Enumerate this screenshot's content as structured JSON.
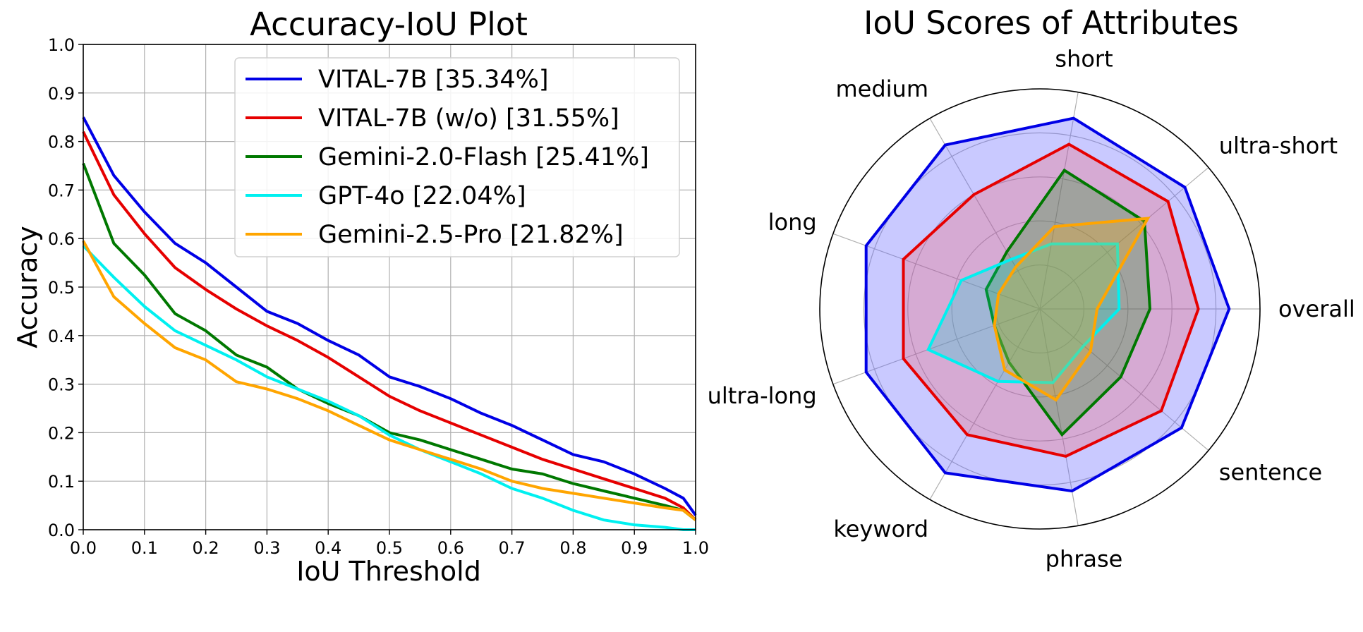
{
  "line_chart": {
    "title": "Accuracy-IoU Plot",
    "xlabel": "IoU Threshold",
    "ylabel": "Accuracy",
    "x_ticks": [
      "0.0",
      "0.1",
      "0.2",
      "0.3",
      "0.4",
      "0.5",
      "0.6",
      "0.7",
      "0.8",
      "0.9",
      "1.0"
    ],
    "y_ticks": [
      "0.0",
      "0.1",
      "0.2",
      "0.3",
      "0.4",
      "0.5",
      "0.6",
      "0.7",
      "0.8",
      "0.9",
      "1.0"
    ]
  },
  "radar_chart": {
    "title": "IoU Scores of Attributes"
  },
  "chart_data": [
    {
      "type": "line",
      "title": "Accuracy-IoU Plot",
      "xlabel": "IoU Threshold",
      "ylabel": "Accuracy",
      "xlim": [
        0,
        1
      ],
      "ylim": [
        0,
        1
      ],
      "grid": true,
      "legend_position": "top-right",
      "x": [
        0.0,
        0.05,
        0.1,
        0.15,
        0.2,
        0.25,
        0.3,
        0.35,
        0.4,
        0.45,
        0.5,
        0.55,
        0.6,
        0.65,
        0.7,
        0.75,
        0.8,
        0.85,
        0.9,
        0.95,
        0.98,
        1.0
      ],
      "series": [
        {
          "name": "VITAL-7B [35.34%]",
          "color": "#0000e6",
          "values": [
            0.85,
            0.73,
            0.655,
            0.59,
            0.55,
            0.5,
            0.45,
            0.425,
            0.39,
            0.36,
            0.315,
            0.295,
            0.27,
            0.24,
            0.215,
            0.185,
            0.155,
            0.14,
            0.115,
            0.085,
            0.065,
            0.03
          ]
        },
        {
          "name": "VITAL-7B (w/o) [31.55%]",
          "color": "#e60000",
          "values": [
            0.82,
            0.69,
            0.61,
            0.54,
            0.495,
            0.455,
            0.42,
            0.39,
            0.355,
            0.315,
            0.275,
            0.245,
            0.22,
            0.195,
            0.17,
            0.145,
            0.125,
            0.105,
            0.085,
            0.065,
            0.045,
            0.02
          ]
        },
        {
          "name": "Gemini-2.0-Flash [25.41%]",
          "color": "#007800",
          "values": [
            0.755,
            0.59,
            0.525,
            0.445,
            0.41,
            0.36,
            0.335,
            0.29,
            0.26,
            0.235,
            0.2,
            0.185,
            0.165,
            0.145,
            0.125,
            0.115,
            0.095,
            0.08,
            0.065,
            0.05,
            0.04,
            0.02
          ]
        },
        {
          "name": "GPT-4o [22.04%]",
          "color": "#00f0f0",
          "values": [
            0.585,
            0.52,
            0.46,
            0.41,
            0.38,
            0.35,
            0.315,
            0.29,
            0.265,
            0.235,
            0.195,
            0.165,
            0.14,
            0.115,
            0.085,
            0.065,
            0.04,
            0.02,
            0.01,
            0.005,
            0.0,
            0.0
          ]
        },
        {
          "name": "Gemini-2.5-Pro [21.82%]",
          "color": "#ffa500",
          "values": [
            0.595,
            0.48,
            0.425,
            0.375,
            0.35,
            0.305,
            0.29,
            0.27,
            0.245,
            0.215,
            0.185,
            0.165,
            0.145,
            0.125,
            0.1,
            0.085,
            0.075,
            0.065,
            0.055,
            0.045,
            0.04,
            0.02
          ]
        }
      ]
    },
    {
      "type": "radar",
      "title": "IoU Scores of Attributes",
      "categories": [
        "overall",
        "ultra-short",
        "short",
        "medium",
        "long",
        "ultra-long",
        "keyword",
        "phrase",
        "sentence"
      ],
      "rmax": 50,
      "series": [
        {
          "name": "VITAL-7B",
          "color": "#0000e6",
          "fill": "rgba(100,100,255,0.35)",
          "values": [
            43,
            43,
            44,
            43,
            42,
            42,
            43,
            42,
            42
          ]
        },
        {
          "name": "VITAL-7B (w/o)",
          "color": "#e60000",
          "fill": "rgba(255,80,80,0.25)",
          "values": [
            36,
            38,
            38,
            30,
            33,
            33,
            33,
            34,
            36
          ]
        },
        {
          "name": "Gemini-2.0-Flash",
          "color": "#007800",
          "fill": "rgba(0,140,0,0.25)",
          "values": [
            25,
            31,
            32,
            15,
            13,
            11,
            14,
            29,
            24
          ]
        },
        {
          "name": "GPT-4o",
          "color": "#00f0f0",
          "fill": "rgba(0,220,220,0.25)",
          "values": [
            18,
            23,
            15,
            13,
            19,
            27,
            19,
            17,
            13
          ]
        },
        {
          "name": "Gemini-2.5-Pro",
          "color": "#ffa500",
          "fill": "rgba(255,170,0,0.25)",
          "values": [
            13,
            32,
            19,
            11,
            10,
            11,
            16,
            21,
            15
          ]
        }
      ]
    }
  ]
}
